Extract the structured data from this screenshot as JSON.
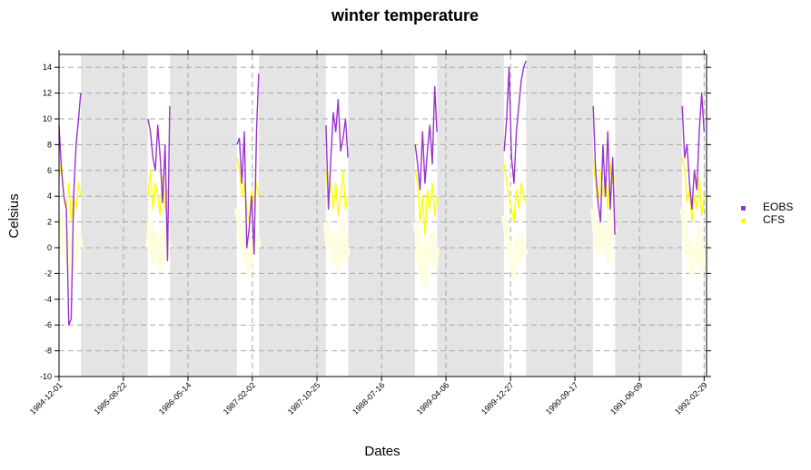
{
  "chart_data": {
    "type": "line",
    "title": "winter temperature",
    "xlabel": "Dates",
    "ylabel": "Celsius",
    "ylim": [
      -10,
      15
    ],
    "yticks": [
      -10,
      -8,
      -6,
      -4,
      -2,
      0,
      2,
      4,
      6,
      8,
      10,
      12,
      14
    ],
    "xlim": [
      "1984-12-01",
      "1992-03-10"
    ],
    "xticks": [
      "1984-12-01",
      "1985-08-22",
      "1986-05-14",
      "1987-02-02",
      "1987-10-25",
      "1988-07-16",
      "1989-04-06",
      "1989-12-27",
      "1990-09-17",
      "1991-06-09",
      "1992-02-29"
    ],
    "grid": true,
    "legend_position": "right",
    "shaded_periods": [
      [
        "1985-03-01",
        "1985-11-30"
      ],
      [
        "1986-03-01",
        "1986-11-30"
      ],
      [
        "1987-03-01",
        "1987-11-30"
      ],
      [
        "1988-03-01",
        "1988-11-30"
      ],
      [
        "1989-03-01",
        "1989-11-30"
      ],
      [
        "1990-03-01",
        "1990-11-30"
      ],
      [
        "1991-03-01",
        "1991-11-30"
      ]
    ],
    "series": [
      {
        "name": "EOBS",
        "color": "#9933CC",
        "segments": [
          {
            "x": [
              "1984-12-01",
              "1984-12-11",
              "1984-12-21",
              "1984-12-31",
              "1985-01-10",
              "1985-01-20",
              "1985-01-30",
              "1985-02-09",
              "1985-02-19",
              "1985-02-28"
            ],
            "y": [
              9.5,
              6.0,
              4.0,
              3.0,
              -6.0,
              -5.5,
              4.0,
              8.0,
              10.0,
              12.0
            ]
          },
          {
            "x": [
              "1985-12-01",
              "1985-12-11",
              "1985-12-21",
              "1985-12-31",
              "1986-01-10",
              "1986-01-20",
              "1986-01-30",
              "1986-02-09",
              "1986-02-19",
              "1986-02-28"
            ],
            "y": [
              10.0,
              9.0,
              7.0,
              6.0,
              9.5,
              7.0,
              3.5,
              8.0,
              -1.0,
              11.0
            ]
          },
          {
            "x": [
              "1986-12-01",
              "1986-12-11",
              "1986-12-21",
              "1986-12-31",
              "1987-01-10",
              "1987-01-20",
              "1987-01-30",
              "1987-02-09",
              "1987-02-19",
              "1987-02-28"
            ],
            "y": [
              8.0,
              8.5,
              5.0,
              9.0,
              0.0,
              1.5,
              4.0,
              -0.5,
              9.0,
              13.5
            ]
          },
          {
            "x": [
              "1987-12-01",
              "1987-12-11",
              "1987-12-21",
              "1987-12-31",
              "1988-01-10",
              "1988-01-20",
              "1988-01-30",
              "1988-02-09",
              "1988-02-19",
              "1988-02-29"
            ],
            "y": [
              9.5,
              3.0,
              7.0,
              10.5,
              9.0,
              11.5,
              7.5,
              8.5,
              10.0,
              7.0
            ]
          },
          {
            "x": [
              "1988-12-01",
              "1988-12-11",
              "1988-12-21",
              "1988-12-31",
              "1989-01-10",
              "1989-01-20",
              "1989-01-30",
              "1989-02-09",
              "1989-02-19",
              "1989-02-28"
            ],
            "y": [
              8.0,
              6.5,
              4.5,
              9.0,
              5.0,
              7.5,
              9.5,
              6.5,
              12.5,
              9.0
            ]
          },
          {
            "x": [
              "1989-12-01",
              "1989-12-11",
              "1989-12-21",
              "1989-12-31",
              "1990-01-10",
              "1990-01-20",
              "1990-01-30",
              "1990-02-09",
              "1990-02-19",
              "1990-02-28"
            ],
            "y": [
              7.5,
              10.0,
              14.0,
              7.0,
              5.0,
              9.0,
              11.0,
              13.0,
              14.0,
              14.5
            ]
          },
          {
            "x": [
              "1990-12-01",
              "1990-12-11",
              "1990-12-21",
              "1990-12-31",
              "1991-01-10",
              "1991-01-20",
              "1991-01-30",
              "1991-02-09",
              "1991-02-19",
              "1991-02-28"
            ],
            "y": [
              11.0,
              6.0,
              3.5,
              2.0,
              8.0,
              4.0,
              9.0,
              3.0,
              7.0,
              1.0
            ]
          },
          {
            "x": [
              "1991-12-01",
              "1991-12-11",
              "1991-12-21",
              "1991-12-31",
              "1992-01-10",
              "1992-01-20",
              "1992-01-30",
              "1992-02-09",
              "1992-02-19",
              "1992-02-29"
            ],
            "y": [
              11.0,
              7.0,
              8.0,
              5.0,
              3.0,
              6.0,
              4.5,
              9.0,
              12.0,
              9.0
            ]
          }
        ]
      },
      {
        "name": "CFS",
        "color": "#FFFF00",
        "segments": [
          {
            "x": [
              "1984-12-01",
              "1984-12-11",
              "1984-12-21",
              "1984-12-31",
              "1985-01-10",
              "1985-01-20",
              "1985-01-30",
              "1985-02-09",
              "1985-02-19",
              "1985-02-28"
            ],
            "y": [
              5.5,
              6.5,
              4.0,
              3.0,
              5.0,
              2.0,
              4.0,
              3.0,
              5.0,
              4.0
            ]
          },
          {
            "x": [
              "1985-12-01",
              "1985-12-11",
              "1985-12-21",
              "1985-12-31",
              "1986-01-10",
              "1986-01-20",
              "1986-01-30",
              "1986-02-09",
              "1986-02-19",
              "1986-02-28"
            ],
            "y": [
              4.0,
              6.0,
              3.0,
              5.0,
              4.0,
              2.5,
              5.5,
              3.0,
              4.5,
              4.0
            ]
          },
          {
            "x": [
              "1986-12-01",
              "1986-12-11",
              "1986-12-21",
              "1986-12-31",
              "1987-01-10",
              "1987-01-20",
              "1987-01-30",
              "1987-02-09",
              "1987-02-19",
              "1987-02-28"
            ],
            "y": [
              7.0,
              6.0,
              4.0,
              5.0,
              3.0,
              2.0,
              4.5,
              3.5,
              5.0,
              4.0
            ]
          },
          {
            "x": [
              "1987-12-01",
              "1987-12-11",
              "1987-12-21",
              "1987-12-31",
              "1988-01-10",
              "1988-01-20",
              "1988-01-30",
              "1988-02-09",
              "1988-02-19",
              "1988-02-29"
            ],
            "y": [
              6.0,
              4.0,
              5.0,
              3.0,
              5.0,
              2.5,
              4.0,
              6.0,
              3.0,
              4.0
            ]
          },
          {
            "x": [
              "1988-12-01",
              "1988-12-11",
              "1988-12-21",
              "1988-12-31",
              "1989-01-10",
              "1989-01-20",
              "1989-01-30",
              "1989-02-09",
              "1989-02-19",
              "1989-02-28"
            ],
            "y": [
              6.0,
              5.0,
              2.0,
              4.0,
              1.0,
              4.5,
              3.0,
              5.0,
              2.5,
              4.0
            ]
          },
          {
            "x": [
              "1989-12-01",
              "1989-12-11",
              "1989-12-21",
              "1989-12-31",
              "1990-01-10",
              "1990-01-20",
              "1990-01-30",
              "1990-02-09",
              "1990-02-19",
              "1990-02-28"
            ],
            "y": [
              6.5,
              5.0,
              4.0,
              3.0,
              2.0,
              4.5,
              3.0,
              5.0,
              4.0,
              3.5
            ]
          },
          {
            "x": [
              "1990-12-01",
              "1990-12-11",
              "1990-12-21",
              "1990-12-31",
              "1991-01-10",
              "1991-01-20",
              "1991-01-30",
              "1991-02-09",
              "1991-02-19",
              "1991-02-28"
            ],
            "y": [
              7.0,
              5.0,
              3.5,
              6.0,
              4.0,
              5.5,
              3.0,
              6.5,
              5.0,
              5.5
            ]
          },
          {
            "x": [
              "1991-12-01",
              "1991-12-11",
              "1991-12-21",
              "1991-12-31",
              "1992-01-10",
              "1992-01-20",
              "1992-01-30",
              "1992-02-09",
              "1992-02-19",
              "1992-02-29"
            ],
            "y": [
              7.0,
              6.0,
              3.5,
              4.5,
              2.0,
              4.0,
              3.0,
              5.5,
              2.5,
              4.0
            ]
          }
        ]
      }
    ]
  }
}
